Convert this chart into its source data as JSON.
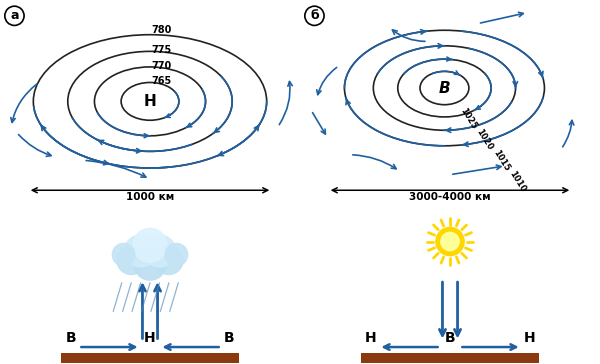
{
  "fig_width": 6.0,
  "fig_height": 3.64,
  "dpi": 100,
  "bg_color": "#ffffff",
  "arrow_color": "#2060a0",
  "ellipse_color": "#222222",
  "label_a": "а",
  "label_b": "б",
  "cyclone_center_label": "Н",
  "anticyclone_center_label": "В",
  "cyclone_isobars": [
    "780",
    "775",
    "770",
    "765"
  ],
  "anticyclone_isobars": [
    "1025",
    "1020",
    "1015",
    "1010"
  ],
  "cyclone_size_label": "1000 км",
  "anticyclone_size_label": "3000-4000 км",
  "ground_color": "#8B3A10",
  "cloud_base_color": "#b8ddf0",
  "cloud_top_color": "#e0f4ff",
  "sun_color": "#FFD700",
  "sun_inner_color": "#FFFF99",
  "rain_color": "#5588bb"
}
